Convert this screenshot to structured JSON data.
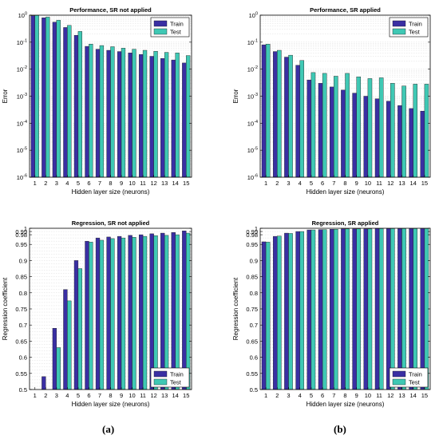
{
  "figure": {
    "label_a": "(a)",
    "label_b": "(b)"
  },
  "chart_data": [
    {
      "id": "perf-no-sr",
      "type": "bar",
      "title": "Performance, SR not applied",
      "xlabel": "Hidden layer size (neurons)",
      "ylabel": "Error",
      "yscale": "log",
      "ylim": [
        1e-06,
        1
      ],
      "yticks": [
        1e-06,
        1e-05,
        0.0001,
        0.001,
        0.01,
        0.1,
        1
      ],
      "ytick_labels": [
        [
          "10",
          "-6"
        ],
        [
          "10",
          "-5"
        ],
        [
          "10",
          "-4"
        ],
        [
          "10",
          "-3"
        ],
        [
          "10",
          "-2"
        ],
        [
          "10",
          "-1"
        ],
        [
          "10",
          "0"
        ]
      ],
      "categories": [
        "1",
        "2",
        "3",
        "4",
        "5",
        "6",
        "7",
        "8",
        "9",
        "10",
        "11",
        "12",
        "13",
        "14",
        "15"
      ],
      "legend": "top-right",
      "grid": true,
      "series": [
        {
          "name": "Train",
          "color": "#3a2fa3",
          "values": [
            0.95,
            0.8,
            0.55,
            0.35,
            0.18,
            0.07,
            0.055,
            0.05,
            0.045,
            0.04,
            0.035,
            0.03,
            0.025,
            0.022,
            0.017
          ]
        },
        {
          "name": "Test",
          "color": "#3fc8b4",
          "values": [
            0.98,
            0.85,
            0.65,
            0.42,
            0.25,
            0.085,
            0.075,
            0.068,
            0.06,
            0.055,
            0.05,
            0.046,
            0.042,
            0.04,
            0.032
          ]
        }
      ]
    },
    {
      "id": "perf-sr",
      "type": "bar",
      "title": "Performance, SR applied",
      "xlabel": "Hidden layer size (neurons)",
      "ylabel": "Error",
      "yscale": "log",
      "ylim": [
        1e-06,
        1
      ],
      "yticks": [
        1e-06,
        1e-05,
        0.0001,
        0.001,
        0.01,
        0.1,
        1
      ],
      "ytick_labels": [
        [
          "10",
          "-6"
        ],
        [
          "10",
          "-5"
        ],
        [
          "10",
          "-4"
        ],
        [
          "10",
          "-3"
        ],
        [
          "10",
          "-2"
        ],
        [
          "10",
          "-1"
        ],
        [
          "10",
          "0"
        ]
      ],
      "categories": [
        "1",
        "2",
        "3",
        "4",
        "5",
        "6",
        "7",
        "8",
        "9",
        "10",
        "11",
        "12",
        "13",
        "14",
        "15"
      ],
      "legend": "top-right",
      "grid": true,
      "series": [
        {
          "name": "Train",
          "color": "#3a2fa3",
          "values": [
            0.08,
            0.045,
            0.028,
            0.014,
            0.004,
            0.003,
            0.0022,
            0.0017,
            0.0013,
            0.001,
            0.0008,
            0.00065,
            0.00045,
            0.00035,
            0.00028
          ]
        },
        {
          "name": "Test",
          "color": "#3fc8b4",
          "values": [
            0.085,
            0.05,
            0.033,
            0.021,
            0.0075,
            0.007,
            0.0055,
            0.007,
            0.0052,
            0.0045,
            0.0048,
            0.003,
            0.0024,
            0.0028,
            0.0028
          ]
        }
      ]
    },
    {
      "id": "reg-no-sr",
      "type": "bar",
      "title": "Regression, SR not applied",
      "xlabel": "Hidden layer size (neurons)",
      "ylabel": "Regression coefficient",
      "yscale": "linear",
      "ylim": [
        0.5,
        1
      ],
      "yticks": [
        0.5,
        0.55,
        0.6,
        0.65,
        0.7,
        0.75,
        0.8,
        0.85,
        0.9,
        0.95,
        0.98,
        0.99,
        1
      ],
      "ytick_labels": [
        [
          "0.5"
        ],
        [
          "0.55"
        ],
        [
          "0.6"
        ],
        [
          "0.65"
        ],
        [
          "0.7"
        ],
        [
          "0.75"
        ],
        [
          "0.8"
        ],
        [
          "0.85"
        ],
        [
          "0.9"
        ],
        [
          "0.95"
        ],
        [
          "0.98"
        ],
        [
          "0.99"
        ],
        [
          "1"
        ]
      ],
      "categories": [
        "1",
        "2",
        "3",
        "4",
        "5",
        "6",
        "7",
        "8",
        "9",
        "10",
        "11",
        "12",
        "13",
        "14",
        "15"
      ],
      "legend": "bottom-right",
      "grid": true,
      "series": [
        {
          "name": "Train",
          "color": "#3a2fa3",
          "values": [
            0.5,
            0.54,
            0.69,
            0.81,
            0.9,
            0.96,
            0.97,
            0.973,
            0.975,
            0.978,
            0.98,
            0.983,
            0.985,
            0.987,
            0.992
          ]
        },
        {
          "name": "Test",
          "color": "#3fc8b4",
          "values": [
            0.5,
            0.5,
            0.63,
            0.775,
            0.875,
            0.957,
            0.963,
            0.968,
            0.97,
            0.972,
            0.975,
            0.977,
            0.978,
            0.98,
            0.985
          ]
        }
      ]
    },
    {
      "id": "reg-sr",
      "type": "bar",
      "title": "Regression, SR applied",
      "xlabel": "Hidden layer size (neurons)",
      "ylabel": "Regression coefficient",
      "yscale": "linear",
      "ylim": [
        0.5,
        1
      ],
      "yticks": [
        0.5,
        0.55,
        0.6,
        0.65,
        0.7,
        0.75,
        0.8,
        0.85,
        0.9,
        0.95,
        0.98,
        0.99,
        1
      ],
      "ytick_labels": [
        [
          "0.5"
        ],
        [
          "0.55"
        ],
        [
          "0.6"
        ],
        [
          "0.65"
        ],
        [
          "0.7"
        ],
        [
          "0.75"
        ],
        [
          "0.8"
        ],
        [
          "0.85"
        ],
        [
          "0.9"
        ],
        [
          "0.95"
        ],
        [
          "0.98"
        ],
        [
          "0.99"
        ],
        [
          "1"
        ]
      ],
      "categories": [
        "1",
        "2",
        "3",
        "4",
        "5",
        "6",
        "7",
        "8",
        "9",
        "10",
        "11",
        "12",
        "13",
        "14",
        "15"
      ],
      "legend": "bottom-right",
      "grid": true,
      "series": [
        {
          "name": "Train",
          "color": "#3a2fa3",
          "values": [
            0.958,
            0.975,
            0.985,
            0.99,
            0.995,
            0.996,
            0.997,
            0.998,
            0.998,
            0.998,
            0.999,
            0.999,
            0.999,
            0.999,
            0.999
          ]
        },
        {
          "name": "Test",
          "color": "#3fc8b4",
          "values": [
            0.957,
            0.976,
            0.984,
            0.99,
            0.995,
            0.996,
            0.997,
            0.998,
            0.998,
            0.998,
            0.999,
            0.999,
            0.999,
            0.999,
            0.999
          ]
        }
      ]
    }
  ]
}
